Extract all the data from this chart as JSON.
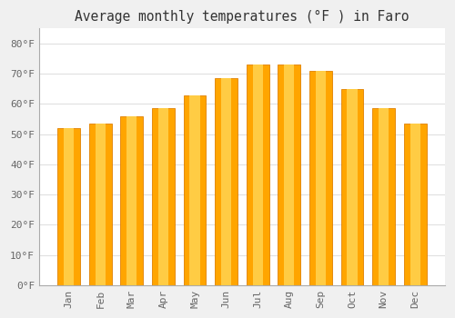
{
  "title": "Average monthly temperatures (°F ) in Faro",
  "months": [
    "Jan",
    "Feb",
    "Mar",
    "Apr",
    "May",
    "Jun",
    "Jul",
    "Aug",
    "Sep",
    "Oct",
    "Nov",
    "Dec"
  ],
  "values": [
    52,
    53.5,
    56,
    58.5,
    63,
    68.5,
    73,
    73,
    71,
    65,
    58.5,
    53.5
  ],
  "background_color": "#f0f0f0",
  "plot_bg_color": "#ffffff",
  "grid_color": "#e0e0e0",
  "bar_color": "#FFA500",
  "bar_edge_color": "#E08000",
  "ytick_labels": [
    "0°F",
    "10°F",
    "20°F",
    "30°F",
    "40°F",
    "50°F",
    "60°F",
    "70°F",
    "80°F"
  ],
  "ytick_values": [
    0,
    10,
    20,
    30,
    40,
    50,
    60,
    70,
    80
  ],
  "ylim": [
    0,
    85
  ],
  "title_fontsize": 10.5,
  "tick_fontsize": 8,
  "tick_color": "#666666",
  "spine_color": "#aaaaaa"
}
